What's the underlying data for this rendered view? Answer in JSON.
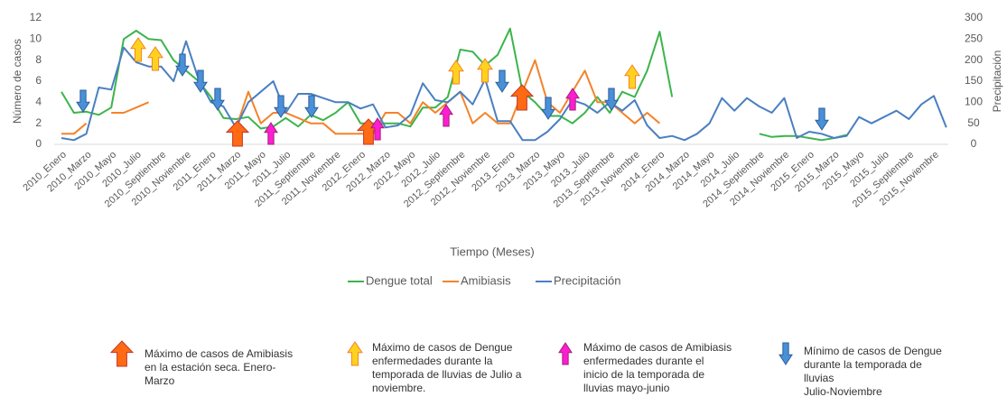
{
  "chart_data": {
    "type": "line",
    "categories": [
      "2010_Enero",
      null,
      "2010_Marzo",
      null,
      "2010_Mayo",
      null,
      "2010_Julio",
      null,
      "2010_Septiembre",
      null,
      "2010_Noviembre",
      null,
      "2011_Enero",
      null,
      "2011_Marzo",
      null,
      "2011_Mayo",
      null,
      "2011_Julio",
      null,
      "2011_Septiembre",
      null,
      "2011_Noviembre",
      null,
      "2012_Enero",
      null,
      "2012_Marzo",
      null,
      "2012_Mayo",
      null,
      "2012_Julio",
      null,
      "2012_Septiembre",
      null,
      "2012_Noviembre",
      null,
      "2013_Enero",
      null,
      "2013_Marzo",
      null,
      "2013_Mayo",
      null,
      "2013_Julio",
      null,
      "2013_Septiembre",
      null,
      "2013_Noviembre",
      null,
      "2014_Enero",
      null,
      "2014_Marzo",
      null,
      "2014_Mayo",
      null,
      "2014_Julio",
      null,
      "2014_Septiembre",
      null,
      "2014_Noviembre",
      null,
      "2015_Enero",
      null,
      "2015_Marzo",
      null,
      "2015_Mayo",
      null,
      "2015_Julio",
      null,
      "2015_Septiembre",
      null,
      "2015_Noviembre",
      null
    ],
    "series": [
      {
        "name": "Dengue total",
        "color": "#3cb44b",
        "values": [
          5,
          3,
          3.1,
          2.8,
          3.5,
          10,
          10.8,
          10,
          9.9,
          8,
          7,
          6,
          4.5,
          2.5,
          2.4,
          2.6,
          1.5,
          1.7,
          2.5,
          1.7,
          2.8,
          2.3,
          3,
          4,
          2,
          2,
          2,
          2,
          1.7,
          3.5,
          3.5,
          4.5,
          9,
          8.8,
          7.5,
          8.5,
          11,
          5,
          4,
          2.7,
          2.7,
          2,
          3,
          4.5,
          3,
          5,
          4.5,
          7,
          10.7,
          4.5,
          null,
          null,
          null,
          null,
          null,
          null,
          1,
          0.7,
          0.8,
          0.8,
          0.6,
          0.4,
          0.6,
          0.9,
          null,
          null,
          null,
          null,
          null,
          null,
          null,
          null
        ]
      },
      {
        "name": "Amibiasis",
        "color": "#f4832a",
        "values": [
          1,
          1,
          2,
          null,
          3,
          3,
          3.5,
          4,
          null,
          null,
          null,
          null,
          null,
          null,
          1.5,
          5,
          2,
          3,
          3,
          2.5,
          2,
          2,
          1,
          1,
          1,
          1,
          3,
          3,
          2,
          4,
          3,
          4,
          5,
          2,
          3,
          2,
          2,
          5,
          8,
          4,
          3,
          5,
          7,
          4,
          4,
          3,
          2,
          3,
          2,
          null,
          null,
          null,
          null,
          null,
          null,
          null,
          null,
          null,
          null,
          null,
          null,
          null,
          null,
          null,
          null,
          null,
          null,
          null,
          null,
          null,
          null,
          null
        ]
      },
      {
        "name": "Precipitación",
        "color": "#4a7fc1",
        "axis": "y2",
        "values": [
          15,
          10,
          25,
          135,
          130,
          230,
          195,
          185,
          185,
          150,
          245,
          155,
          100,
          90,
          40,
          100,
          125,
          150,
          75,
          120,
          120,
          110,
          100,
          100,
          85,
          95,
          40,
          45,
          70,
          145,
          105,
          100,
          125,
          95,
          155,
          55,
          55,
          10,
          10,
          30,
          60,
          105,
          95,
          75,
          100,
          80,
          105,
          45,
          15,
          20,
          10,
          25,
          50,
          110,
          80,
          110,
          90,
          75,
          110,
          15,
          30,
          25,
          15,
          20,
          65,
          50,
          65,
          80,
          60,
          95,
          115,
          40
        ]
      }
    ],
    "ylim": [
      0,
      12
    ],
    "yticks": [
      0,
      2,
      4,
      6,
      8,
      10,
      12
    ],
    "y2lim": [
      0,
      300
    ],
    "y2ticks": [
      0,
      50,
      100,
      150,
      200,
      250,
      300
    ],
    "ylabel": "Número de casos",
    "y2label": "Precipitación",
    "xlabel": "Tiempo (Meses)",
    "notes": [
      [
        "Máximo de casos de Amibiasis",
        "en la estación seca. Enero-",
        "Marzo"
      ],
      [
        "Máximo de casos de  Dengue",
        "enfermedades durante la",
        "temporada de lluvias de Julio a",
        "noviembre."
      ],
      [
        "Máximo de casos de  Amibiasis",
        "enfermedades durante  el",
        "inicio de la temporada de",
        "lluvias mayo-junio"
      ],
      [
        "Mínimo de casos de Dengue",
        "durante la temporada de",
        "lluvias",
        "Julio-Noviembre"
      ]
    ]
  }
}
